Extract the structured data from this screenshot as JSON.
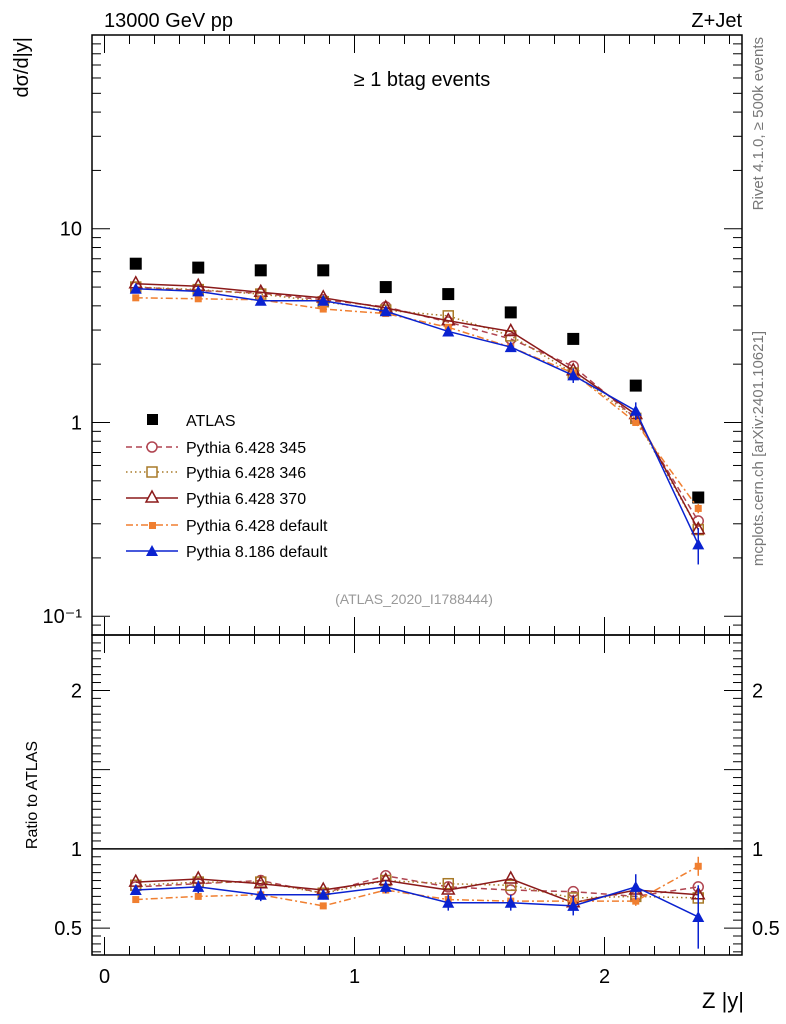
{
  "header": {
    "left_title": "13000 GeV pp",
    "right_title": "Z+Jet"
  },
  "side_labels": {
    "rivet": "Rivet 4.1.0, ≥ 500k events",
    "mcplots": "mcplots.cern.ch [arXiv:2401.10621]"
  },
  "chart_data": [
    {
      "type": "scatter",
      "panel": "main",
      "title": "≥ 1 btag events",
      "ylabel": "dσ/d|y|",
      "xlabel": "",
      "yscale": "log",
      "ylim": [
        0.08,
        100
      ],
      "xlim": [
        -0.05,
        2.55
      ],
      "y_ticks": [
        {
          "value": 10,
          "label": "10"
        },
        {
          "value": 1,
          "label": "1"
        },
        {
          "value": 0.1,
          "label": "10⁻¹"
        }
      ],
      "x": [
        0.125,
        0.375,
        0.625,
        0.875,
        1.125,
        1.375,
        1.625,
        1.875,
        2.125,
        2.375
      ],
      "annotation": "(ATLAS_2020_I1788444)",
      "series": [
        {
          "name": "ATLAS",
          "color": "#000000",
          "marker": "square-filled",
          "line": "none",
          "values": [
            6.6,
            6.3,
            6.1,
            6.1,
            5.0,
            4.6,
            3.7,
            2.7,
            1.55,
            0.41
          ],
          "errors": [
            0.1,
            0.1,
            0.1,
            0.1,
            0.1,
            0.1,
            0.08,
            0.06,
            0.04,
            0.02
          ]
        },
        {
          "name": "Pythia 6.428 345",
          "color": "#b04450",
          "marker": "circle-open",
          "line": "dashed",
          "values": [
            5.0,
            4.8,
            4.65,
            4.3,
            3.95,
            3.3,
            2.7,
            1.95,
            1.05,
            0.31
          ],
          "errors": [
            0,
            0,
            0,
            0,
            0,
            0,
            0,
            0,
            0,
            0
          ]
        },
        {
          "name": "Pythia 6.428 346",
          "color": "#a87a28",
          "marker": "square-open",
          "line": "dotted",
          "values": [
            5.0,
            4.85,
            4.6,
            4.2,
            3.8,
            3.55,
            2.8,
            1.8,
            1.05,
            0.28
          ],
          "errors": [
            0,
            0,
            0,
            0,
            0,
            0,
            0,
            0,
            0,
            0
          ]
        },
        {
          "name": "Pythia 6.428 370",
          "color": "#8b1a1a",
          "marker": "triangle-open",
          "line": "solid",
          "values": [
            5.2,
            5.05,
            4.7,
            4.4,
            3.9,
            3.35,
            2.95,
            1.85,
            1.1,
            0.28
          ],
          "errors": [
            0,
            0,
            0,
            0,
            0,
            0,
            0,
            0,
            0,
            0
          ]
        },
        {
          "name": "Pythia 6.428 default",
          "color": "#f07f30",
          "marker": "square-filled-small",
          "line": "dashdot",
          "values": [
            4.4,
            4.35,
            4.3,
            3.85,
            3.65,
            3.1,
            2.45,
            1.8,
            1.0,
            0.36
          ],
          "errors": [
            0.05,
            0.05,
            0.05,
            0.05,
            0.05,
            0.05,
            0.05,
            0.05,
            0.03,
            0.02
          ]
        },
        {
          "name": "Pythia 8.186 default",
          "color": "#0a22d0",
          "marker": "triangle-filled",
          "line": "solid",
          "values": [
            4.9,
            4.75,
            4.25,
            4.25,
            3.75,
            2.95,
            2.45,
            1.75,
            1.15,
            0.235
          ],
          "errors": [
            0.12,
            0.12,
            0.12,
            0.12,
            0.12,
            0.1,
            0.12,
            0.15,
            0.12,
            0.05
          ]
        }
      ]
    },
    {
      "type": "scatter",
      "panel": "ratio",
      "ylabel": "Ratio to ATLAS",
      "xlabel": "Z |y|",
      "ylim": [
        0.33,
        2.35
      ],
      "xlim": [
        -0.05,
        2.55
      ],
      "y_ticks": [
        {
          "value": 2,
          "label": "2"
        },
        {
          "value": 1,
          "label": "1"
        },
        {
          "value": 0.5,
          "label": "0.5"
        }
      ],
      "x_ticks": [
        {
          "value": 0,
          "label": "0"
        },
        {
          "value": 1,
          "label": "1"
        },
        {
          "value": 2,
          "label": "2"
        }
      ],
      "x": [
        0.125,
        0.375,
        0.625,
        0.875,
        1.125,
        1.375,
        1.625,
        1.875,
        2.125,
        2.375
      ],
      "series": [
        {
          "name": "Pythia 6.428 345",
          "color": "#b04450",
          "marker": "circle-open",
          "line": "dashed",
          "values": [
            0.76,
            0.78,
            0.8,
            0.72,
            0.83,
            0.76,
            0.74,
            0.73,
            0.7,
            0.76
          ],
          "errors": [
            0,
            0,
            0,
            0,
            0,
            0,
            0,
            0,
            0,
            0
          ]
        },
        {
          "name": "Pythia 6.428 346",
          "color": "#a87a28",
          "marker": "square-open",
          "line": "dotted",
          "values": [
            0.77,
            0.79,
            0.79,
            0.72,
            0.8,
            0.78,
            0.77,
            0.69,
            0.7,
            0.69
          ],
          "errors": [
            0,
            0,
            0,
            0,
            0,
            0,
            0,
            0,
            0,
            0
          ]
        },
        {
          "name": "Pythia 6.428 370",
          "color": "#8b1a1a",
          "marker": "triangle-open",
          "line": "solid",
          "values": [
            0.79,
            0.81,
            0.78,
            0.74,
            0.8,
            0.74,
            0.81,
            0.66,
            0.74,
            0.71
          ],
          "errors": [
            0,
            0,
            0,
            0,
            0,
            0,
            0,
            0,
            0,
            0
          ]
        },
        {
          "name": "Pythia 6.428 default",
          "color": "#f07f30",
          "marker": "square-filled-small",
          "line": "dashdot",
          "values": [
            0.68,
            0.7,
            0.71,
            0.64,
            0.74,
            0.68,
            0.67,
            0.67,
            0.67,
            0.89
          ],
          "errors": [
            0.02,
            0.02,
            0.02,
            0.02,
            0.02,
            0.02,
            0.02,
            0.02,
            0.03,
            0.06
          ]
        },
        {
          "name": "Pythia 8.186 default",
          "color": "#0a22d0",
          "marker": "triangle-filled",
          "line": "solid",
          "values": [
            0.74,
            0.76,
            0.71,
            0.71,
            0.76,
            0.66,
            0.66,
            0.64,
            0.76,
            0.57
          ],
          "errors": [
            0.03,
            0.04,
            0.04,
            0.03,
            0.04,
            0.05,
            0.05,
            0.06,
            0.08,
            0.2
          ]
        }
      ]
    }
  ]
}
